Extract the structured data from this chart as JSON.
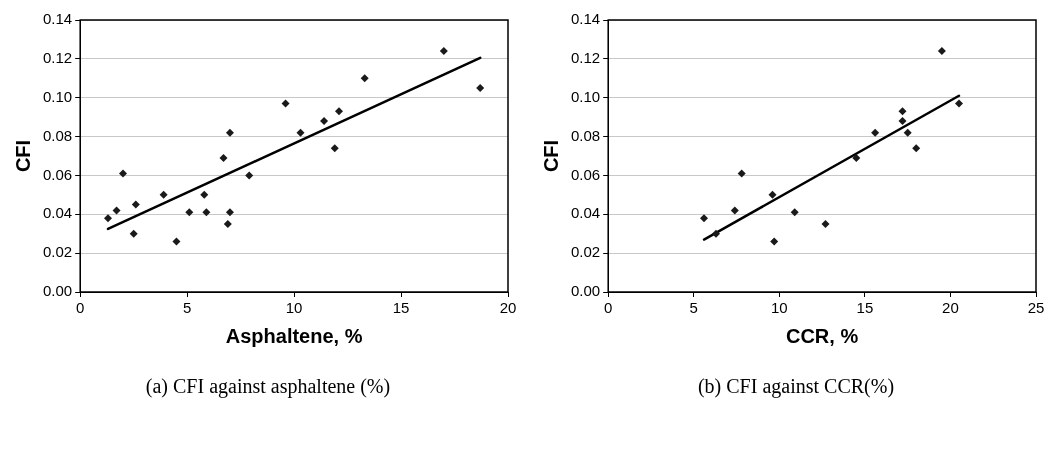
{
  "chart_data": [
    {
      "type": "scatter",
      "xlabel": "Asphaltene, %",
      "ylabel": "CFI",
      "xlim": [
        0,
        20
      ],
      "xticks": [
        0,
        5,
        10,
        15,
        20
      ],
      "ylim": [
        0,
        0.14
      ],
      "yticks": [
        {
          "value": 0,
          "label": "0.00"
        },
        {
          "value": 0.02,
          "label": "0.02"
        },
        {
          "value": 0.04,
          "label": "0.04"
        },
        {
          "value": 0.06,
          "label": "0.06"
        },
        {
          "value": 0.08,
          "label": "0.08"
        },
        {
          "value": 0.1,
          "label": "0.10"
        },
        {
          "value": 0.12,
          "label": "0.12"
        },
        {
          "value": 0.14,
          "label": "0.14"
        }
      ],
      "grid": "y",
      "legend": false,
      "marker": "diamond",
      "annotations": [
        "(a) CFI against asphaltene (%)"
      ],
      "series": [
        {
          "type": "scatter",
          "color": "#1a1a1a",
          "x": [
            1.3,
            1.7,
            2.0,
            2.5,
            2.6,
            3.9,
            4.5,
            5.1,
            5.8,
            5.9,
            6.7,
            6.9,
            7.0,
            7.0,
            7.9,
            9.6,
            10.3,
            11.4,
            11.9,
            12.1,
            13.3,
            17.0,
            18.7
          ],
          "values": [
            0.038,
            0.042,
            0.061,
            0.03,
            0.045,
            0.05,
            0.026,
            0.041,
            0.05,
            0.041,
            0.069,
            0.035,
            0.082,
            0.041,
            0.06,
            0.097,
            0.082,
            0.088,
            0.074,
            0.093,
            0.11,
            0.124,
            0.105
          ]
        },
        {
          "type": "line",
          "color": "#000000",
          "marker": "none",
          "line_style": "solid",
          "x": [
            1.3,
            18.7
          ],
          "values": [
            0.0325,
            0.1205
          ]
        }
      ]
    },
    {
      "type": "scatter",
      "xlabel": "CCR, %",
      "ylabel": "CFI",
      "xlim": [
        0,
        25
      ],
      "xticks": [
        0,
        5,
        10,
        15,
        20,
        25
      ],
      "ylim": [
        0,
        0.14
      ],
      "yticks": [
        {
          "value": 0,
          "label": "0.00"
        },
        {
          "value": 0.02,
          "label": "0.02"
        },
        {
          "value": 0.04,
          "label": "0.04"
        },
        {
          "value": 0.06,
          "label": "0.06"
        },
        {
          "value": 0.08,
          "label": "0.08"
        },
        {
          "value": 0.1,
          "label": "0.10"
        },
        {
          "value": 0.12,
          "label": "0.12"
        },
        {
          "value": 0.14,
          "label": "0.14"
        }
      ],
      "grid": "y",
      "legend": false,
      "marker": "diamond",
      "annotations": [
        "(b) CFI against CCR(%)"
      ],
      "series": [
        {
          "type": "scatter",
          "color": "#1a1a1a",
          "x": [
            5.6,
            6.3,
            7.4,
            7.8,
            9.6,
            9.7,
            10.9,
            12.7,
            14.5,
            15.6,
            17.2,
            17.2,
            17.5,
            18.0,
            19.5,
            20.5
          ],
          "values": [
            0.038,
            0.03,
            0.042,
            0.061,
            0.05,
            0.026,
            0.041,
            0.035,
            0.069,
            0.082,
            0.093,
            0.088,
            0.082,
            0.074,
            0.124,
            0.097
          ]
        },
        {
          "type": "line",
          "color": "#000000",
          "marker": "none",
          "line_style": "solid",
          "x": [
            5.6,
            20.5
          ],
          "values": [
            0.027,
            0.101
          ]
        }
      ]
    }
  ]
}
